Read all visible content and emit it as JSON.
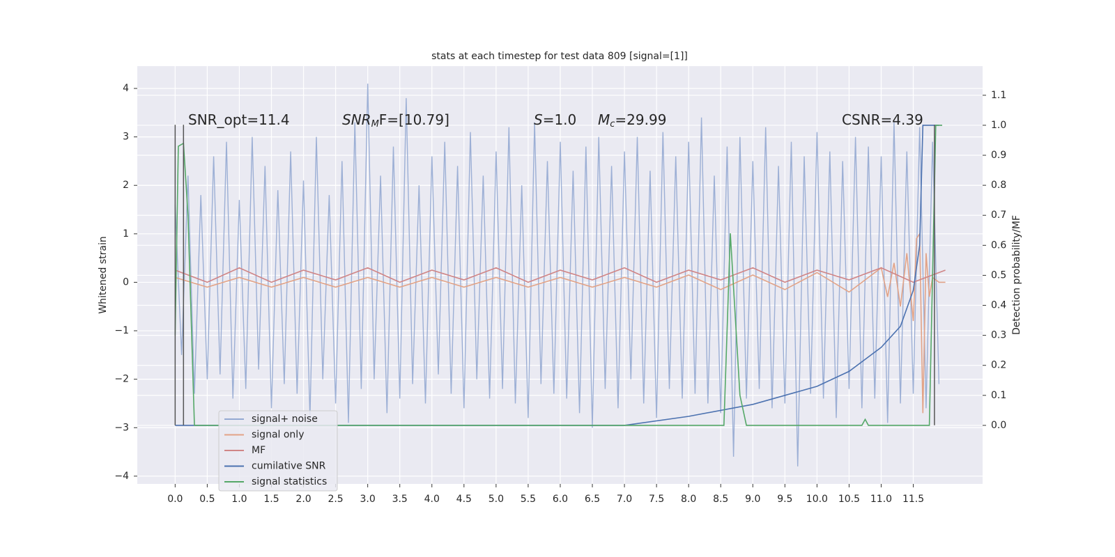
{
  "chart_data": {
    "type": "line",
    "title": "stats at each timestep for test data 809 [signal=[1]]",
    "ylabel": "Whitened strain",
    "y2label": "Detection probability/MF",
    "xlim": [
      -0.59,
      12.58
    ],
    "ylim": [
      -4.16,
      4.46
    ],
    "y2lim": [
      -0.195,
      1.197
    ],
    "xticks": [
      {
        "value": 0,
        "label": "0.0"
      },
      0.5,
      {
        "value": 1,
        "label": "1.0"
      },
      1.5,
      {
        "value": 2,
        "label": "2.0"
      },
      2.5,
      {
        "value": 3,
        "label": "3.0"
      },
      3.5,
      {
        "value": 4,
        "label": "4.0"
      },
      4.5,
      {
        "value": 5,
        "label": "5.0"
      },
      5.5,
      {
        "value": 6,
        "label": "6.0"
      },
      6.5,
      {
        "value": 7,
        "label": "7.0"
      },
      7.5,
      {
        "value": 8,
        "label": "8.0"
      },
      8.5,
      {
        "value": 9,
        "label": "9.0"
      },
      9.5,
      {
        "value": 10,
        "label": "10.0"
      },
      10.5,
      {
        "value": 11,
        "label": "11.0"
      },
      11.5
    ],
    "yticks": [
      {
        "value": -4,
        "label": "−4"
      },
      {
        "value": -3,
        "label": "−3"
      },
      {
        "value": -2,
        "label": "−2"
      },
      {
        "value": -1,
        "label": "−1"
      },
      0,
      1,
      2,
      3,
      4
    ],
    "y2ticks": [
      {
        "value": 0,
        "label": "0.0"
      },
      0.1,
      0.2,
      0.3,
      0.4,
      0.5,
      0.6,
      0.7,
      0.8,
      0.9,
      {
        "value": 1,
        "label": "1.0"
      },
      1.1
    ],
    "grid": true,
    "legend": "lower left",
    "annotations": [
      {
        "main": "SNR_opt=11.4"
      },
      {
        "main": "SNR",
        "sub": "M",
        "tail": "F=[10.79]"
      },
      {
        "main": "S",
        "tail": "=1.0"
      },
      {
        "main": "M",
        "sub": "c",
        "tail": "=29.99"
      },
      {
        "main": "CSNR=4.39"
      }
    ],
    "vlines": [
      0,
      0.13,
      11.83
    ],
    "vline_range": [
      -2.95,
      3.25
    ],
    "vline_color": "#555555",
    "series": [
      {
        "name": "signal+ noise",
        "color": "#93a9d2",
        "x": [
          0,
          0.1,
          0.2,
          0.3,
          0.4,
          0.5,
          0.6,
          0.7,
          0.8,
          0.9,
          1,
          1.1,
          1.2,
          1.3,
          1.4,
          1.5,
          1.6,
          1.7,
          1.8,
          1.9,
          2,
          2.1,
          2.2,
          2.3,
          2.4,
          2.5,
          2.6,
          2.7,
          2.8,
          2.9,
          3,
          3.1,
          3.2,
          3.3,
          3.4,
          3.5,
          3.6,
          3.7,
          3.8,
          3.9,
          4,
          4.1,
          4.2,
          4.3,
          4.4,
          4.5,
          4.6,
          4.7,
          4.8,
          4.9,
          5,
          5.1,
          5.2,
          5.3,
          5.4,
          5.5,
          5.6,
          5.7,
          5.8,
          5.9,
          6,
          6.1,
          6.2,
          6.3,
          6.4,
          6.5,
          6.6,
          6.7,
          6.8,
          6.9,
          7,
          7.1,
          7.2,
          7.3,
          7.4,
          7.5,
          7.6,
          7.7,
          7.8,
          7.9,
          8,
          8.1,
          8.2,
          8.3,
          8.4,
          8.5,
          8.6,
          8.7,
          8.8,
          8.9,
          9,
          9.1,
          9.2,
          9.3,
          9.4,
          9.5,
          9.6,
          9.7,
          9.8,
          9.9,
          10,
          10.1,
          10.2,
          10.3,
          10.4,
          10.5,
          10.6,
          10.7,
          10.8,
          10.9,
          11,
          11.1,
          11.2,
          11.3,
          11.4,
          11.5,
          11.6,
          11.7,
          11.8,
          11.9
        ],
        "values": [
          1.6,
          -1.5,
          2.2,
          -2.3,
          1.8,
          -2.0,
          2.6,
          -1.9,
          2.9,
          -2.4,
          1.7,
          -2.2,
          3.0,
          -1.8,
          2.4,
          -2.6,
          1.9,
          -2.1,
          2.7,
          -2.3,
          2.1,
          -2.8,
          3.0,
          -2.0,
          1.8,
          -2.5,
          2.5,
          -2.9,
          3.3,
          -2.2,
          4.1,
          -2.0,
          2.2,
          -2.7,
          2.8,
          -2.4,
          3.8,
          -2.1,
          2.0,
          -2.5,
          2.6,
          -1.9,
          2.9,
          -2.3,
          2.4,
          -2.6,
          3.1,
          -2.0,
          2.2,
          -2.4,
          2.7,
          -2.2,
          3.2,
          -2.5,
          2.0,
          -2.8,
          3.3,
          -2.1,
          2.5,
          -2.3,
          2.9,
          -2.4,
          2.3,
          -2.7,
          2.8,
          -3.0,
          3.0,
          -2.2,
          2.4,
          -2.6,
          2.7,
          -2.0,
          3.0,
          -2.5,
          2.3,
          -2.8,
          3.1,
          -2.2,
          2.6,
          -2.4,
          2.9,
          -2.3,
          3.4,
          -2.5,
          2.2,
          -2.7,
          2.8,
          -3.6,
          3.0,
          -2.4,
          2.5,
          -2.2,
          3.2,
          -2.6,
          2.4,
          -2.5,
          2.9,
          -3.8,
          2.6,
          -2.3,
          3.1,
          -2.4,
          2.7,
          -2.8,
          2.5,
          -2.2,
          3.0,
          -2.6,
          2.8,
          -2.4,
          2.6,
          -2.9,
          3.3,
          -2.5,
          2.7,
          -2.3,
          3.2,
          -2.6,
          2.9,
          -2.1
        ]
      },
      {
        "name": "signal only",
        "color": "#e2a387",
        "x": [
          0,
          0.5,
          1,
          1.5,
          2,
          2.5,
          3,
          3.5,
          4,
          4.5,
          5,
          5.5,
          6,
          6.5,
          7,
          7.5,
          8,
          8.5,
          9,
          9.5,
          10,
          10.5,
          11,
          11.1,
          11.2,
          11.3,
          11.4,
          11.5,
          11.55,
          11.6,
          11.65,
          11.7,
          11.75,
          11.8,
          11.9,
          12
        ],
        "values": [
          0.1,
          -0.1,
          0.1,
          -0.1,
          0.1,
          -0.1,
          0.1,
          -0.1,
          0.1,
          -0.1,
          0.1,
          -0.1,
          0.1,
          -0.1,
          0.1,
          -0.1,
          0.15,
          -0.15,
          0.15,
          -0.15,
          0.2,
          -0.2,
          0.3,
          -0.3,
          0.4,
          -0.5,
          0.6,
          -0.8,
          0.9,
          1.0,
          -2.7,
          0.6,
          -0.3,
          0.1,
          0.0,
          0.0
        ]
      },
      {
        "name": "MF",
        "color": "#d08586",
        "x": [
          0,
          0.5,
          1,
          1.5,
          2,
          2.5,
          3,
          3.5,
          4,
          4.5,
          5,
          5.5,
          6,
          6.5,
          7,
          7.5,
          8,
          8.5,
          9,
          9.5,
          10,
          10.5,
          11,
          11.5,
          12
        ],
        "values": [
          0.25,
          0.0,
          0.3,
          0.0,
          0.25,
          0.05,
          0.3,
          0.0,
          0.25,
          0.05,
          0.3,
          0.0,
          0.25,
          0.05,
          0.3,
          0.0,
          0.25,
          0.05,
          0.3,
          0.0,
          0.25,
          0.05,
          0.3,
          0.0,
          0.25
        ]
      },
      {
        "name": "cumilative SNR",
        "color": "#4c72b0",
        "axis": "y2",
        "x": [
          0,
          7,
          8,
          9,
          10,
          10.5,
          11,
          11.3,
          11.5,
          11.6,
          11.65,
          11.9
        ],
        "values": [
          0,
          0,
          0.03,
          0.07,
          0.13,
          0.18,
          0.26,
          0.33,
          0.45,
          0.6,
          1.0,
          1.0
        ]
      },
      {
        "name": "signal statistics",
        "color": "#55a868",
        "axis": "y2",
        "x": [
          0,
          0.05,
          0.13,
          0.2,
          0.3,
          8.55,
          8.65,
          8.8,
          8.9,
          10.7,
          10.75,
          10.8,
          11.75,
          11.85,
          11.95
        ],
        "values": [
          0.3,
          0.93,
          0.94,
          0.7,
          0.0,
          0.0,
          0.64,
          0.1,
          0.0,
          0.0,
          0.02,
          0.0,
          0.0,
          1.0,
          1.0
        ]
      }
    ]
  }
}
